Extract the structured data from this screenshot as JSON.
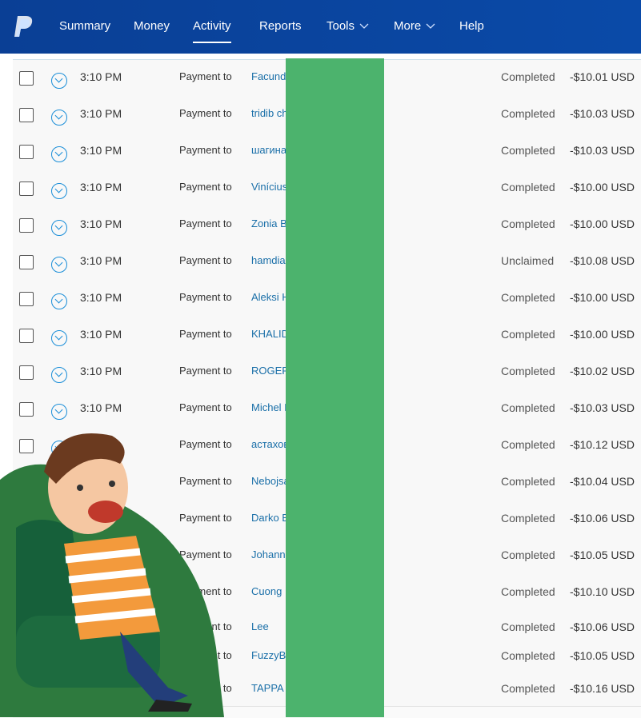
{
  "nav": {
    "items": [
      "Summary",
      "Money",
      "Activity",
      "Reports",
      "Tools",
      "More",
      "Help"
    ],
    "active": "Activity"
  },
  "rows": [
    {
      "time": "3:10 PM",
      "type": "Payment to",
      "name": "Facund",
      "status": "Completed",
      "amount": "-$10.01 USD"
    },
    {
      "time": "3:10 PM",
      "type": "Payment to",
      "name": "tridib ch",
      "status": "Completed",
      "amount": "-$10.03 USD"
    },
    {
      "time": "3:10 PM",
      "type": "Payment to",
      "name": "шагина",
      "status": "Completed",
      "amount": "-$10.03 USD"
    },
    {
      "time": "3:10 PM",
      "type": "Payment to",
      "name": "Vinícius",
      "status": "Completed",
      "amount": "-$10.00 USD"
    },
    {
      "time": "3:10 PM",
      "type": "Payment to",
      "name": "Zonia B",
      "status": "Completed",
      "amount": "-$10.00 USD"
    },
    {
      "time": "3:10 PM",
      "type": "Payment to",
      "name": "hamdia",
      "status": "Unclaimed",
      "amount": "-$10.08 USD"
    },
    {
      "time": "3:10 PM",
      "type": "Payment to",
      "name": "Aleksi H",
      "status": "Completed",
      "amount": "-$10.00 USD"
    },
    {
      "time": "3:10 PM",
      "type": "Payment to",
      "name": "KHALID",
      "status": "Completed",
      "amount": "-$10.00 USD"
    },
    {
      "time": "3:10 PM",
      "type": "Payment to",
      "name": "ROGER",
      "status": "Completed",
      "amount": "-$10.02 USD"
    },
    {
      "time": "3:10 PM",
      "type": "Payment to",
      "name": "Michel I",
      "status": "Completed",
      "amount": "-$10.03 USD"
    },
    {
      "type": "Payment to",
      "name": "астахов",
      "status": "Completed",
      "amount": "-$10.12 USD"
    },
    {
      "type": "Payment to",
      "name": "Nebojsa",
      "status": "Completed",
      "amount": "-$10.04 USD"
    },
    {
      "type": "Payment to",
      "name": "Darko B",
      "status": "Completed",
      "amount": "-$10.06 USD"
    },
    {
      "type": "Payment to",
      "name": "Johann",
      "status": "Completed",
      "amount": "-$10.05 USD"
    },
    {
      "type": "Payment to",
      "name": "Cuong",
      "status": "Completed",
      "amount": "-$10.10 USD"
    },
    {
      "type": "Payment to",
      "name": "Lee",
      "status": "Completed",
      "amount": "-$10.06 USD"
    },
    {
      "type": "Payment to",
      "name": "FuzzyB",
      "status": "Completed",
      "amount": "-$10.05 USD"
    },
    {
      "type": "Payment to",
      "name": "TAPPA",
      "status": "Completed",
      "amount": "-$10.16 USD"
    }
  ]
}
